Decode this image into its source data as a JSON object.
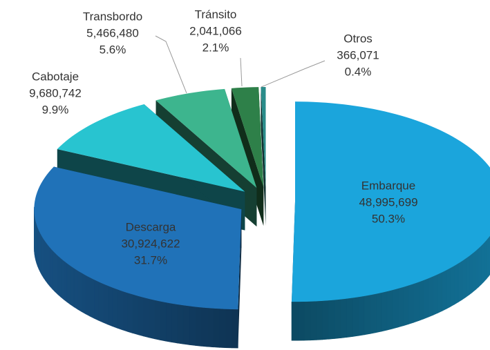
{
  "chart_data": {
    "type": "pie",
    "categories": [
      "Embarque",
      "Descarga",
      "Cabotaje",
      "Transbordo",
      "Tránsito",
      "Otros"
    ],
    "values": [
      48995699,
      30924622,
      9680742,
      5466480,
      2041066,
      366071
    ],
    "value_labels": [
      "48,995,699",
      "30,924,622",
      "9,680,742",
      "5,466,480",
      "2,041,066",
      "366,071"
    ],
    "percent_labels": [
      "50.3%",
      "31.7%",
      "9.9%",
      "5.6%",
      "2.1%",
      "0.4%"
    ],
    "colors": [
      "#1ba5dc",
      "#2072b8",
      "#28c4d0",
      "#3db58e",
      "#2e8049",
      "#2a8c8a"
    ]
  }
}
